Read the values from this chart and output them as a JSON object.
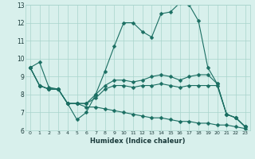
{
  "xlabel": "Humidex (Indice chaleur)",
  "bg_color": "#d8f0ec",
  "line_color": "#1a6e62",
  "grid_color": "#a8d4cc",
  "x": [
    0,
    1,
    2,
    3,
    4,
    5,
    6,
    7,
    8,
    9,
    10,
    11,
    12,
    13,
    14,
    15,
    16,
    17,
    18,
    19,
    20,
    21,
    22,
    23
  ],
  "series1": [
    9.5,
    9.8,
    8.4,
    8.3,
    7.5,
    6.6,
    7.0,
    8.0,
    9.3,
    10.7,
    12.0,
    12.0,
    11.5,
    11.2,
    12.5,
    12.6,
    13.1,
    13.0,
    12.1,
    9.5,
    8.6,
    6.9,
    6.7,
    6.2
  ],
  "series2": [
    9.5,
    8.5,
    8.3,
    8.3,
    7.5,
    7.5,
    7.5,
    8.0,
    8.5,
    8.8,
    8.8,
    8.7,
    8.8,
    9.0,
    9.1,
    9.0,
    8.8,
    9.0,
    9.1,
    9.1,
    8.6,
    6.9,
    6.7,
    6.2
  ],
  "series3": [
    9.5,
    8.5,
    8.3,
    8.3,
    7.5,
    7.5,
    7.5,
    7.8,
    8.3,
    8.5,
    8.5,
    8.4,
    8.5,
    8.5,
    8.6,
    8.5,
    8.4,
    8.5,
    8.5,
    8.5,
    8.5,
    6.9,
    6.7,
    6.2
  ],
  "series4": [
    9.5,
    8.5,
    8.3,
    8.3,
    7.5,
    7.5,
    7.3,
    7.3,
    7.2,
    7.1,
    7.0,
    6.9,
    6.8,
    6.7,
    6.7,
    6.6,
    6.5,
    6.5,
    6.4,
    6.4,
    6.3,
    6.3,
    6.2,
    6.1
  ],
  "ylim": [
    6,
    13
  ],
  "xlim": [
    -0.5,
    23.5
  ],
  "yticks": [
    6,
    7,
    8,
    9,
    10,
    11,
    12,
    13
  ],
  "xticks": [
    0,
    1,
    2,
    3,
    4,
    5,
    6,
    7,
    8,
    9,
    10,
    11,
    12,
    13,
    14,
    15,
    16,
    17,
    18,
    19,
    20,
    21,
    22,
    23
  ],
  "xtick_labels": [
    "0",
    "1",
    "2",
    "3",
    "4",
    "5",
    "6",
    "7",
    "8",
    "9",
    "10",
    "11",
    "12",
    "13",
    "14",
    "15",
    "16",
    "17",
    "18",
    "19",
    "20",
    "21",
    "22",
    "23"
  ],
  "markersize": 2.5,
  "linewidth": 0.8
}
